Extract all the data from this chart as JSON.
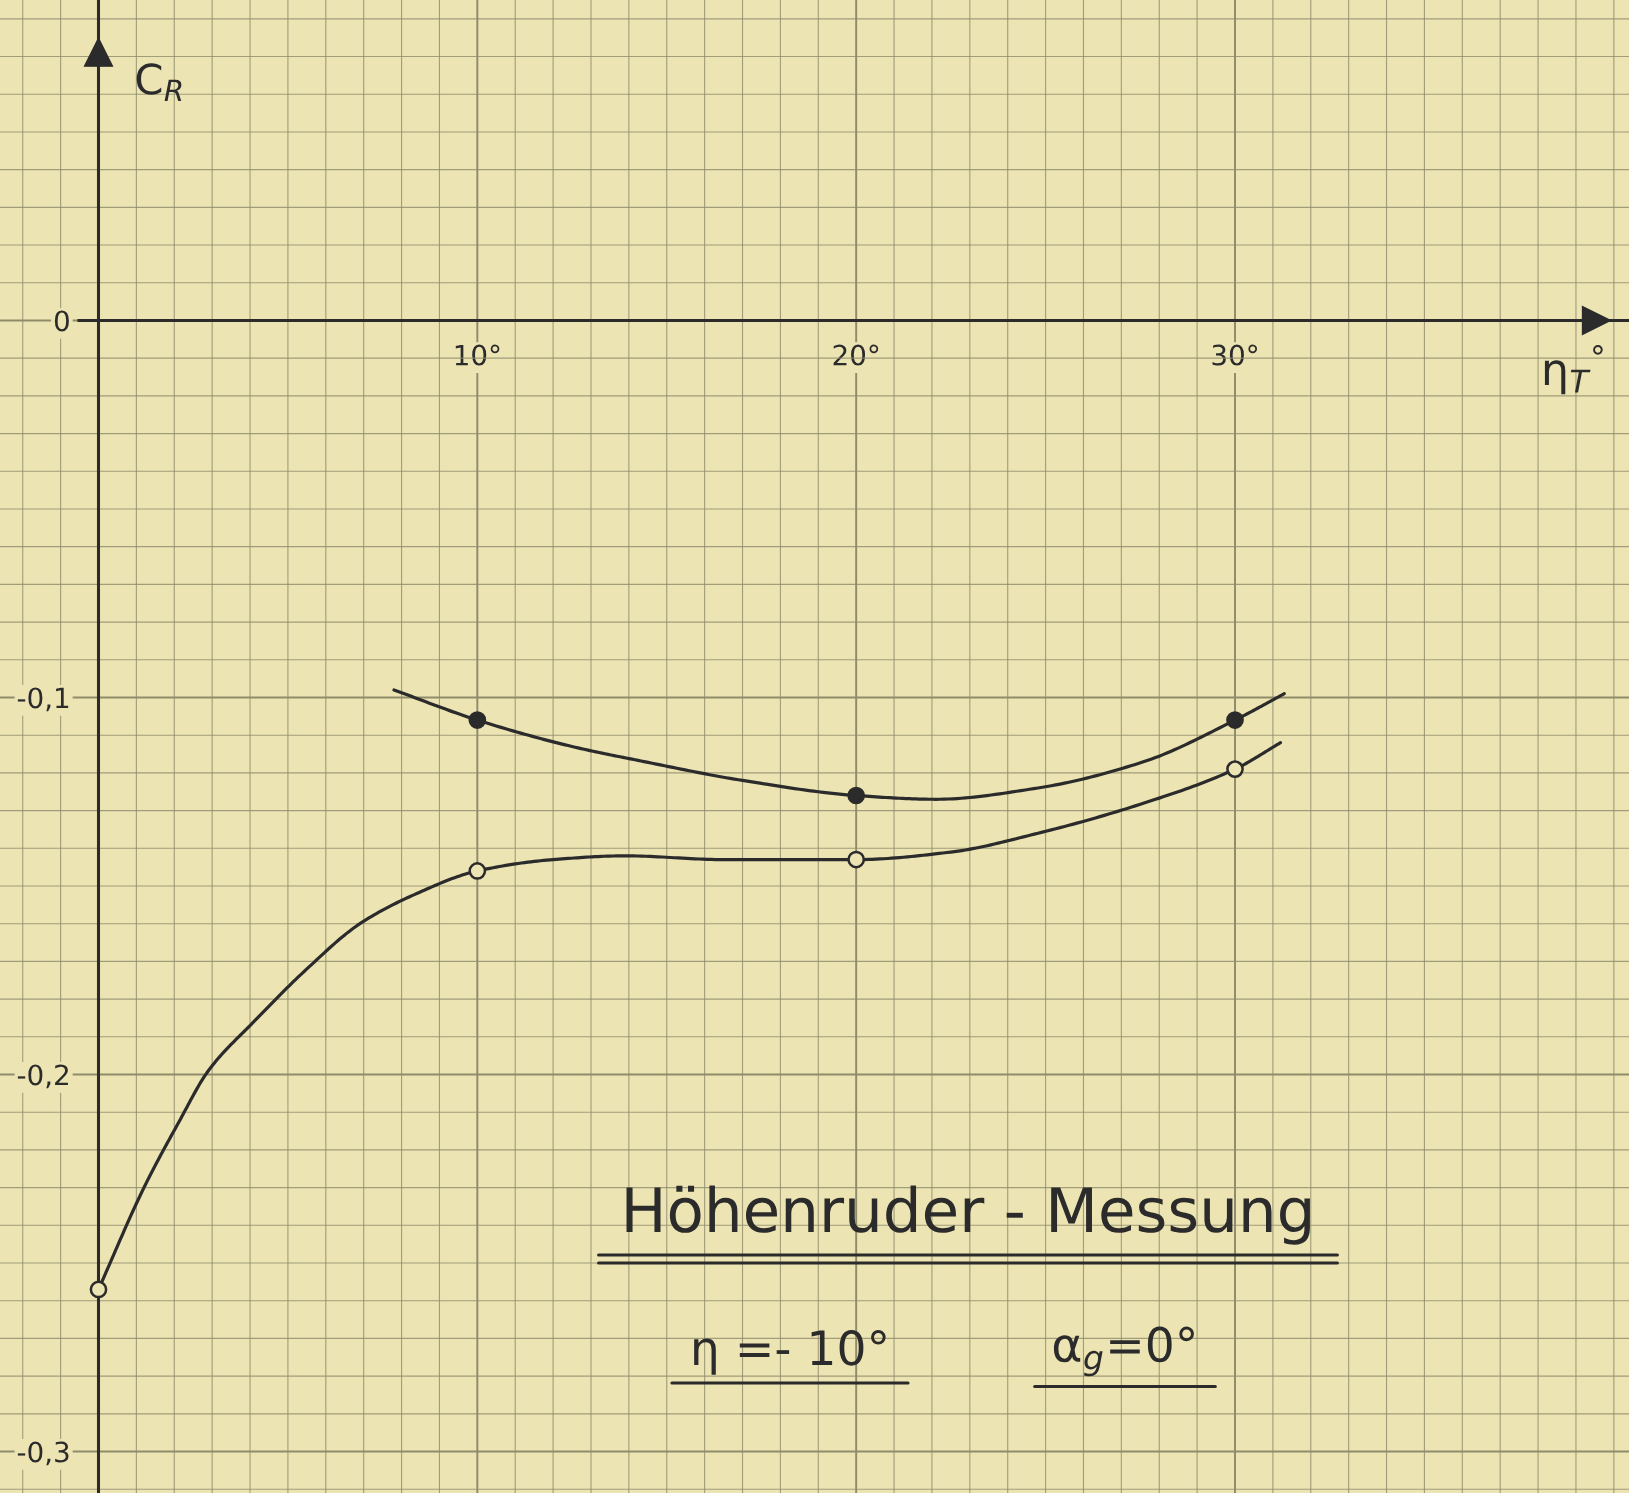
{
  "chart_data": {
    "type": "line",
    "title": "Höhenruder - Messung",
    "xlabel": "η$_{T}$$^{°}$",
    "ylabel": "C$_{R}$",
    "annotations": [
      "η =- 10°",
      "α$_{g}$=0°"
    ],
    "series": [
      {
        "type": "line",
        "color": "#2b2b2b",
        "marker": "none",
        "x": [
          7.8,
          10,
          12.5,
          14.4,
          17,
          20,
          22.1,
          24.8,
          27.6,
          30,
          31.3
        ],
        "values": [
          -0.098,
          -0.106,
          -0.113,
          -0.117,
          -0.122,
          -0.126,
          -0.127,
          -0.124,
          -0.117,
          -0.106,
          -0.099
        ]
      },
      {
        "type": "scatter",
        "color": "#2b2b2b",
        "marker": "circle",
        "x": [
          10,
          20,
          30
        ],
        "values": [
          -0.106,
          -0.126,
          -0.106
        ]
      },
      {
        "type": "line",
        "color": "#2b2b2b",
        "marker": "none",
        "x": [
          0,
          1.2,
          2.1,
          2.9,
          4.1,
          5.5,
          6.9,
          8.4,
          10,
          12,
          13.9,
          16.5,
          20,
          22.5,
          24.8,
          27.6,
          30,
          31.2
        ],
        "values": [
          -0.257,
          -0.23,
          -0.213,
          -0.199,
          -0.186,
          -0.172,
          -0.16,
          -0.152,
          -0.146,
          -0.143,
          -0.142,
          -0.143,
          -0.143,
          -0.141,
          -0.136,
          -0.128,
          -0.119,
          -0.112
        ]
      },
      {
        "type": "scatter",
        "color": "#ece4b3",
        "marker": "circle",
        "x": [
          0,
          10,
          20,
          30
        ],
        "values": [
          -0.257,
          -0.146,
          -0.143,
          -0.119
        ]
      }
    ],
    "xlim": [
      -2.6,
      40.4
    ],
    "ylim": [
      -0.311,
      0.085
    ],
    "xticks": [
      {
        "value": 10,
        "label": "10°"
      },
      {
        "value": 20,
        "label": "20°"
      },
      {
        "value": 30,
        "label": "30°"
      }
    ],
    "yticks": [
      {
        "value": 0,
        "label": "0"
      },
      {
        "value": -0.1,
        "label": "-0,1"
      },
      {
        "value": -0.2,
        "label": "-0,2"
      },
      {
        "value": -0.3,
        "label": "-0,3"
      }
    ],
    "grid": true
  }
}
